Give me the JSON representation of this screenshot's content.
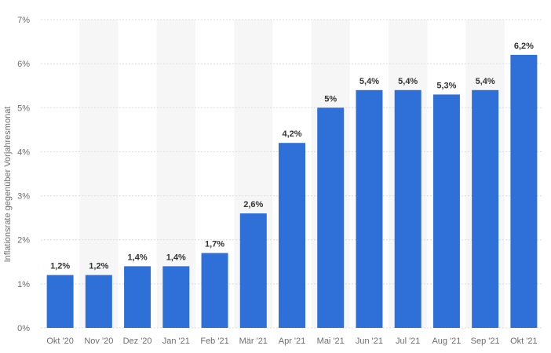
{
  "chart_data": {
    "type": "bar",
    "ylabel": "Inflationsrate gegenüber Vorjahresmonat",
    "categories": [
      "Okt '20",
      "Nov '20",
      "Dez '20",
      "Jan '21",
      "Feb '21",
      "Mär '21",
      "Apr '21",
      "Mai '21",
      "Jun '21",
      "Jul '21",
      "Aug '21",
      "Sep '21",
      "Okt '21"
    ],
    "values": [
      1.2,
      1.2,
      1.4,
      1.4,
      1.7,
      2.6,
      4.2,
      5.0,
      5.4,
      5.4,
      5.3,
      5.4,
      6.2
    ],
    "value_labels": [
      "1,2%",
      "1,2%",
      "1,4%",
      "1,4%",
      "1,7%",
      "2,6%",
      "4,2%",
      "5%",
      "5,4%",
      "5,4%",
      "5,3%",
      "5,4%",
      "6,2%"
    ],
    "y_ticks": [
      0,
      1,
      2,
      3,
      4,
      5,
      6,
      7
    ],
    "y_tick_labels": [
      "0%",
      "1%",
      "2%",
      "3%",
      "4%",
      "5%",
      "6%",
      "7%"
    ],
    "ylim": [
      0,
      7
    ],
    "grid": true,
    "legend": "none",
    "colors": {
      "bar": "#2f6fd8",
      "grid": "#dcdcdc",
      "band": "#f6f6f6"
    }
  }
}
